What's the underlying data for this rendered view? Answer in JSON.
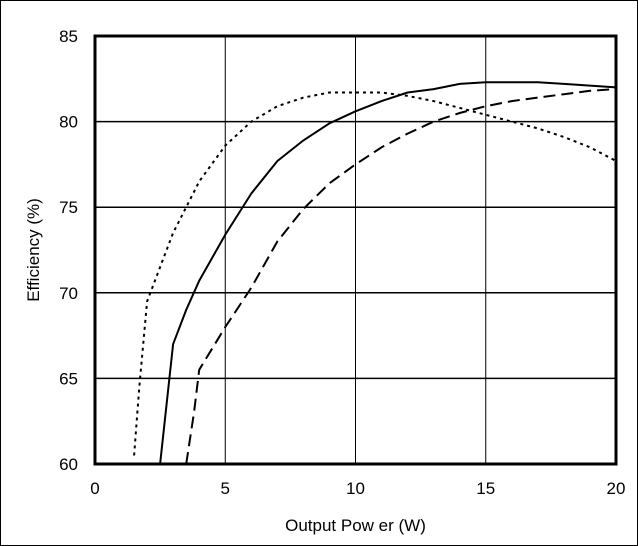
{
  "chart_data": {
    "type": "line",
    "title": "",
    "xlabel": "Output Pow er (W)",
    "ylabel": "Efficiency (%)",
    "xlim": [
      0,
      20
    ],
    "ylim": [
      60,
      85
    ],
    "xticks": [
      0,
      5,
      10,
      15,
      20
    ],
    "yticks": [
      60,
      65,
      70,
      75,
      80,
      85
    ],
    "grid": true,
    "legend": "none",
    "series": [
      {
        "style": "dotted",
        "color": "#000000",
        "points": [
          [
            1.5,
            60.5
          ],
          [
            1.7,
            64.5
          ],
          [
            2.0,
            69.5
          ],
          [
            2.5,
            71.5
          ],
          [
            3.0,
            73.5
          ],
          [
            3.5,
            75.0
          ],
          [
            4.0,
            76.5
          ],
          [
            5.0,
            78.6
          ],
          [
            6.0,
            80.0
          ],
          [
            7.0,
            80.9
          ],
          [
            8.0,
            81.4
          ],
          [
            9.0,
            81.7
          ],
          [
            10.0,
            81.7
          ],
          [
            11.0,
            81.7
          ],
          [
            12.0,
            81.5
          ],
          [
            13.0,
            81.2
          ],
          [
            14.0,
            80.8
          ],
          [
            15.0,
            80.4
          ],
          [
            16.0,
            80.0
          ],
          [
            17.0,
            79.6
          ],
          [
            18.0,
            79.1
          ],
          [
            19.0,
            78.5
          ],
          [
            20.0,
            77.7
          ]
        ]
      },
      {
        "style": "solid",
        "color": "#000000",
        "points": [
          [
            2.5,
            60.0
          ],
          [
            3.0,
            67.0
          ],
          [
            3.5,
            69.0
          ],
          [
            4.0,
            70.7
          ],
          [
            5.0,
            73.4
          ],
          [
            6.0,
            75.8
          ],
          [
            7.0,
            77.7
          ],
          [
            8.0,
            78.9
          ],
          [
            9.0,
            79.9
          ],
          [
            10.0,
            80.6
          ],
          [
            11.0,
            81.2
          ],
          [
            12.0,
            81.7
          ],
          [
            13.0,
            81.9
          ],
          [
            14.0,
            82.2
          ],
          [
            15.0,
            82.3
          ],
          [
            16.0,
            82.3
          ],
          [
            17.0,
            82.3
          ],
          [
            18.0,
            82.2
          ],
          [
            19.0,
            82.1
          ],
          [
            20.0,
            82.0
          ]
        ]
      },
      {
        "style": "dashed",
        "color": "#000000",
        "points": [
          [
            3.5,
            60.0
          ],
          [
            3.8,
            63.0
          ],
          [
            4.0,
            65.5
          ],
          [
            5.0,
            68.0
          ],
          [
            6.0,
            70.3
          ],
          [
            7.0,
            73.0
          ],
          [
            8.0,
            74.9
          ],
          [
            9.0,
            76.4
          ],
          [
            10.0,
            77.5
          ],
          [
            11.0,
            78.5
          ],
          [
            12.0,
            79.3
          ],
          [
            13.0,
            80.0
          ],
          [
            14.0,
            80.5
          ],
          [
            15.0,
            80.9
          ],
          [
            16.0,
            81.2
          ],
          [
            17.0,
            81.4
          ],
          [
            18.0,
            81.6
          ],
          [
            19.0,
            81.8
          ],
          [
            20.0,
            81.9
          ]
        ]
      }
    ]
  }
}
